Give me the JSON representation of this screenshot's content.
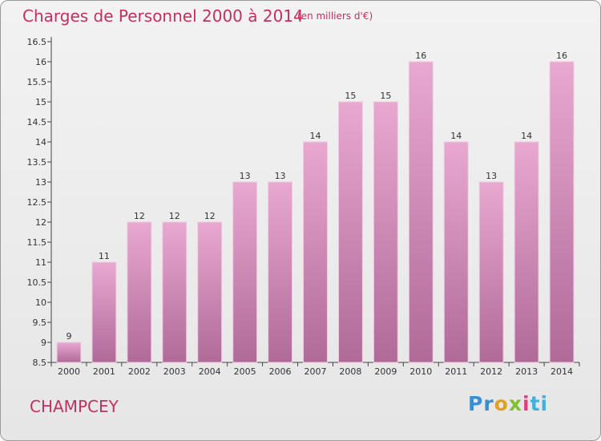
{
  "title": "Charges de Personnel 2000 à 2014",
  "subtitle": "(en milliers d'€)",
  "place": "CHAMPCEY",
  "logo": {
    "letters": [
      "P",
      "r",
      "o",
      "x",
      "i",
      "t",
      "i"
    ],
    "colors": [
      "#3a8fd0",
      "#3a8fd0",
      "#e0a020",
      "#80c030",
      "#e04080",
      "#40b0e0",
      "#40b0e0"
    ]
  },
  "colors": {
    "accent": "#c03060",
    "bar": "#d68ab5"
  },
  "chart_data": {
    "type": "bar",
    "categories": [
      "2000",
      "2001",
      "2002",
      "2003",
      "2004",
      "2005",
      "2006",
      "2007",
      "2008",
      "2009",
      "2010",
      "2011",
      "2012",
      "2013",
      "2014"
    ],
    "values": [
      9,
      11,
      12,
      12,
      12,
      13,
      13,
      14,
      15,
      15,
      16,
      14,
      13,
      14,
      16
    ],
    "value_labels": [
      "9",
      "11",
      "12",
      "12",
      "12",
      "13",
      "13",
      "14",
      "15",
      "15",
      "16",
      "14",
      "13",
      "14",
      "16"
    ],
    "y_ticks": [
      "8.5",
      "9",
      "9.5",
      "10",
      "10.5",
      "11",
      "11.5",
      "12",
      "12.5",
      "13",
      "13.5",
      "14",
      "14.5",
      "15",
      "15.5",
      "16",
      "16.5"
    ],
    "ylim": [
      8.5,
      16.5
    ],
    "grid": false,
    "title": "Charges de Personnel 2000 à 2014"
  }
}
